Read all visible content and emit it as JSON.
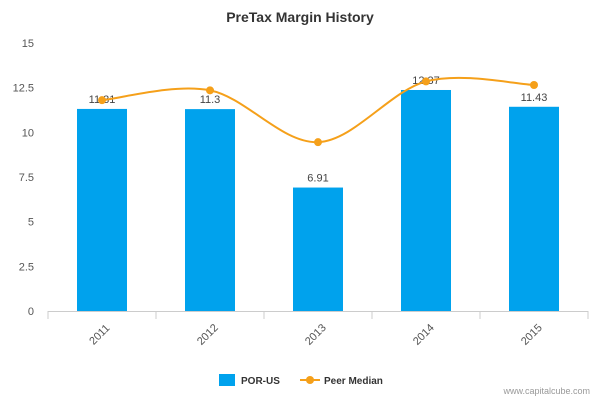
{
  "chart_data": {
    "type": "bar",
    "title": "PreTax Margin History",
    "categories": [
      "2011",
      "2012",
      "2013",
      "2014",
      "2015"
    ],
    "series": [
      {
        "name": "POR-US",
        "kind": "bar",
        "values": [
          11.31,
          11.3,
          6.91,
          12.37,
          11.43
        ],
        "data_labels": [
          "11.31",
          "11.3",
          "6.91",
          "12.37",
          "11.43"
        ],
        "color": "#00a2ed"
      },
      {
        "name": "Peer Median",
        "kind": "line",
        "smooth": true,
        "values": [
          11.8,
          12.35,
          9.45,
          12.85,
          12.65
        ],
        "color": "#f5a01a"
      }
    ],
    "yticks": [
      "0",
      "2.5",
      "5",
      "7.5",
      "10",
      "12.5",
      "15"
    ],
    "ylim": [
      0,
      15
    ],
    "xlabel": "",
    "ylabel": "",
    "grid": false,
    "legend_position": "bottom-center"
  },
  "watermark": "www.capitalcube.com"
}
